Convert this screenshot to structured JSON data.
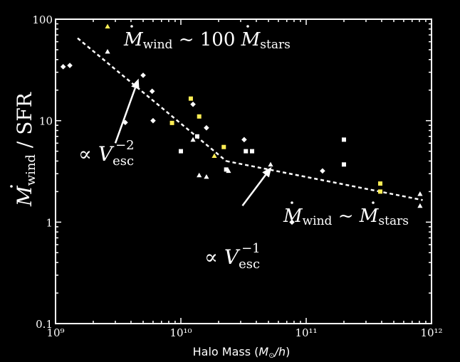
{
  "chart_data": {
    "type": "scatter",
    "xlabel": "Halo Mass (M⊙/h)",
    "ylabel": "Ṁwind / SFR",
    "xscale": "log",
    "yscale": "log",
    "xlim": [
      1000000000.0,
      1000000000000.0
    ],
    "ylim": [
      0.1,
      100
    ],
    "x_ticks": [
      {
        "value": 1000000000.0,
        "label": "10⁹"
      },
      {
        "value": 10000000000.0,
        "label": "10¹⁰"
      },
      {
        "value": 100000000000.0,
        "label": "10¹¹"
      },
      {
        "value": 1000000000000.0,
        "label": "10¹²"
      }
    ],
    "y_ticks": [
      {
        "value": 0.1,
        "label": "0.1"
      },
      {
        "value": 1,
        "label": "1"
      },
      {
        "value": 10,
        "label": "10"
      },
      {
        "value": 100,
        "label": "100"
      }
    ],
    "colors": {
      "background": "#000000",
      "axes": "#ffffff",
      "white_points": "#ffffff",
      "yellow_points": "#ffee55"
    },
    "series": [
      {
        "marker": "diamond",
        "color": "#ffffff",
        "points": [
          [
            1150000000.0,
            34
          ],
          [
            1300000000.0,
            35
          ],
          [
            3600000000.0,
            9.6
          ],
          [
            5000000000.0,
            28
          ],
          [
            5900000000.0,
            19.5
          ],
          [
            6000000000.0,
            10
          ],
          [
            12500000000.0,
            14.5
          ],
          [
            16000000000.0,
            8.5
          ],
          [
            32000000000.0,
            6.5
          ],
          [
            135000000000.0,
            3.2
          ],
          [
            77000000000.0,
            1.0
          ]
        ]
      },
      {
        "marker": "square",
        "color": "#ffffff",
        "points": [
          [
            10000000000.0,
            5.0
          ],
          [
            13500000000.0,
            7.0
          ],
          [
            23000000000.0,
            3.3
          ],
          [
            33000000000.0,
            5.0
          ],
          [
            37000000000.0,
            5.0
          ],
          [
            200000000000.0,
            6.5
          ],
          [
            200000000000.0,
            3.7
          ]
        ]
      },
      {
        "marker": "square",
        "color": "#ffee55",
        "points": [
          [
            8500000000.0,
            9.5
          ],
          [
            12000000000.0,
            16.5
          ],
          [
            14000000000.0,
            11
          ],
          [
            22000000000.0,
            5.5
          ],
          [
            390000000000.0,
            2.4
          ],
          [
            390000000000.0,
            2.0
          ]
        ]
      },
      {
        "marker": "triangle",
        "color": "#ffffff",
        "points": [
          [
            2600000000.0,
            48
          ],
          [
            12500000000.0,
            6.5
          ],
          [
            14000000000.0,
            2.9
          ],
          [
            16000000000.0,
            2.8
          ],
          [
            24000000000.0,
            3.2
          ],
          [
            52000000000.0,
            3.7
          ],
          [
            810000000000.0,
            1.9
          ],
          [
            810000000000.0,
            1.45
          ]
        ]
      },
      {
        "marker": "triangle",
        "color": "#ffee55",
        "points": [
          [
            2600000000.0,
            85
          ],
          [
            18500000000.0,
            4.5
          ]
        ]
      }
    ],
    "fits": [
      {
        "style": "dashed",
        "color": "#ffffff",
        "points": [
          [
            1500000000.0,
            65
          ],
          [
            23000000000.0,
            4.0
          ]
        ]
      },
      {
        "style": "dashed",
        "color": "#ffffff",
        "points": [
          [
            23000000000.0,
            4.0
          ],
          [
            850000000000.0,
            1.65
          ]
        ]
      }
    ],
    "annotations": [
      {
        "id": "wind100",
        "text": "Ṁwind ~ 100 Ṁstars"
      },
      {
        "id": "vesc2",
        "text": "∝ V_esc^−2"
      },
      {
        "id": "vesc1",
        "text": "∝ V_esc^−1"
      },
      {
        "id": "windeq",
        "text": "Ṁwind ~ Ṁstars"
      }
    ],
    "arrows": [
      {
        "from": [
          3000000000.0,
          6.0
        ],
        "to": [
          4600000000.0,
          26
        ]
      },
      {
        "from": [
          31000000000.0,
          1.45
        ],
        "to": [
          53000000000.0,
          3.5
        ]
      }
    ]
  }
}
